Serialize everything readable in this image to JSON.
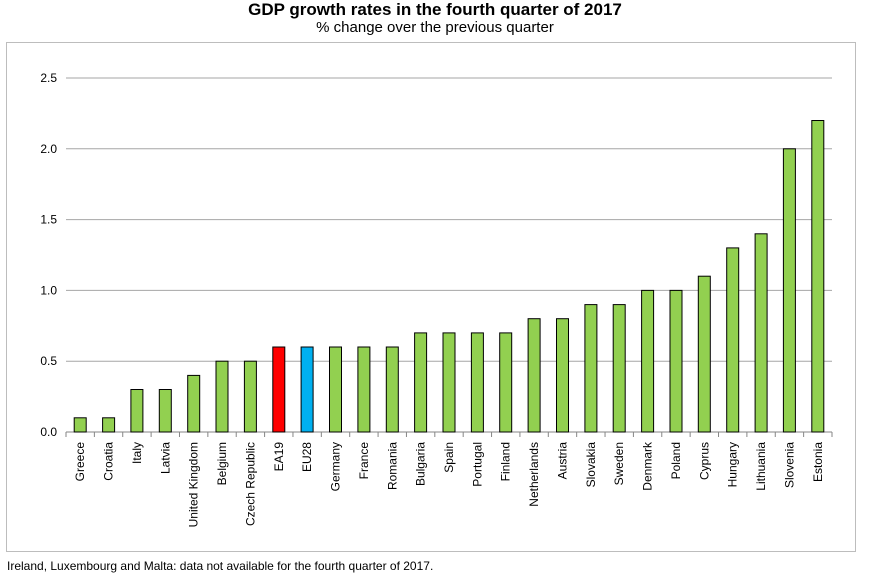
{
  "title": "GDP growth rates in the fourth quarter of 2017",
  "subtitle": "% change over the previous quarter",
  "footnote": "Ireland, Luxembourg and Malta: data not available for the fourth quarter of 2017.",
  "colors": {
    "default_bar": "#92d050",
    "ea19_bar": "#ff0000",
    "eu28_bar": "#00b0f0",
    "gridline": "#a6a6a6"
  },
  "chart_data": {
    "type": "bar",
    "title": "GDP growth rates in the fourth quarter of 2017",
    "subtitle": "% change over the previous quarter",
    "categories": [
      "Greece",
      "Croatia",
      "Italy",
      "Latvia",
      "United Kingdom",
      "Belgium",
      "Czech Republic",
      "EA19",
      "EU28",
      "Germany",
      "France",
      "Romania",
      "Bulgaria",
      "Spain",
      "Portugal",
      "Finland",
      "Netherlands",
      "Austria",
      "Slovakia",
      "Sweden",
      "Denmark",
      "Poland",
      "Cyprus",
      "Hungary",
      "Lithuania",
      "Slovenia",
      "Estonia"
    ],
    "values": [
      0.1,
      0.1,
      0.3,
      0.3,
      0.4,
      0.5,
      0.5,
      0.6,
      0.6,
      0.6,
      0.6,
      0.6,
      0.7,
      0.7,
      0.7,
      0.7,
      0.8,
      0.8,
      0.9,
      0.9,
      1.0,
      1.0,
      1.1,
      1.3,
      1.4,
      2.0,
      2.2
    ],
    "highlight": {
      "EA19": "#ff0000",
      "EU28": "#00b0f0"
    },
    "ylim": [
      0,
      2.5
    ],
    "yticks": [
      "0.0",
      "0.5",
      "1.0",
      "1.5",
      "2.0",
      "2.5"
    ],
    "grid": true,
    "legend": "none",
    "xlabel": "",
    "ylabel": ""
  }
}
